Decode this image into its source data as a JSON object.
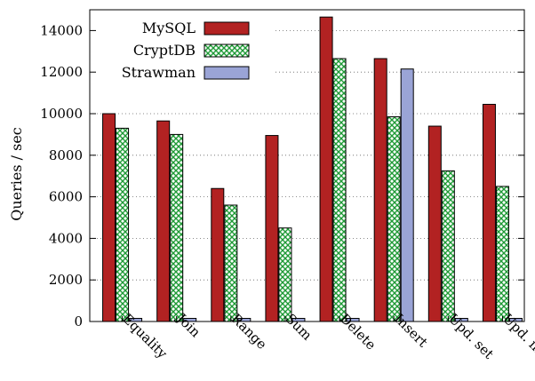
{
  "chart_data": {
    "type": "bar",
    "title": "",
    "xlabel": "",
    "ylabel": "Queries / sec",
    "ylim": [
      0,
      15000
    ],
    "yticks": [
      0,
      2000,
      4000,
      6000,
      8000,
      10000,
      12000,
      14000
    ],
    "grid": "horizontal dotted",
    "legend_position": "top-left",
    "categories": [
      "Equality",
      "Join",
      "Range",
      "Sum",
      "Delete",
      "Insert",
      "Upd. set",
      "Upd. inc"
    ],
    "series": [
      {
        "name": "MySQL",
        "color": "#b22222",
        "pattern": "solid",
        "values": [
          10000,
          9650,
          6400,
          8950,
          14650,
          12650,
          9400,
          10450
        ]
      },
      {
        "name": "CryptDB",
        "color": "#1f9a36",
        "pattern": "crosshatch",
        "values": [
          9300,
          9000,
          5600,
          4500,
          12650,
          9850,
          7250,
          6500
        ]
      },
      {
        "name": "Strawman",
        "color": "#9aa4d6",
        "pattern": "solid",
        "values": [
          150,
          150,
          150,
          150,
          150,
          12150,
          150,
          150
        ]
      }
    ]
  }
}
